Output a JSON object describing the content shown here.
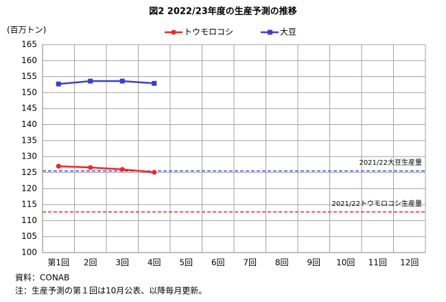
{
  "chart_data": {
    "type": "line",
    "title": "図2  2022/23年度の生産予測の推移",
    "y_label": "(百万トン)",
    "categories": [
      "第1回",
      "2回",
      "3回",
      "4回",
      "5回",
      "6回",
      "7回",
      "8回",
      "9回",
      "10回",
      "11回",
      "12回"
    ],
    "series": [
      {
        "name": "トウモロコシ",
        "color": "#ff2020",
        "marker": "circle",
        "values": [
          127,
          126.6,
          126,
          125.1,
          null,
          null,
          null,
          null,
          null,
          null,
          null,
          null
        ]
      },
      {
        "name": "大豆",
        "color": "#3a3ae0",
        "marker": "square",
        "values": [
          152.7,
          153.6,
          153.6,
          152.9,
          null,
          null,
          null,
          null,
          null,
          null,
          null,
          null
        ]
      }
    ],
    "reference_lines": [
      {
        "label": "2021/22大豆生産量",
        "value": 125.5,
        "color": "#3a3ae0"
      },
      {
        "label": "2021/22トウモロコシ生産量",
        "value": 112.7,
        "color": "#ff2020"
      }
    ],
    "ylim": [
      100,
      165
    ],
    "yticks": [
      100,
      105,
      110,
      115,
      120,
      125,
      130,
      135,
      140,
      145,
      150,
      155,
      160,
      165
    ],
    "grid": true,
    "legend": "top",
    "notes": [
      "資料：CONAB",
      "注：生産予測の第１回は10月公表、以降毎月更新。"
    ]
  }
}
